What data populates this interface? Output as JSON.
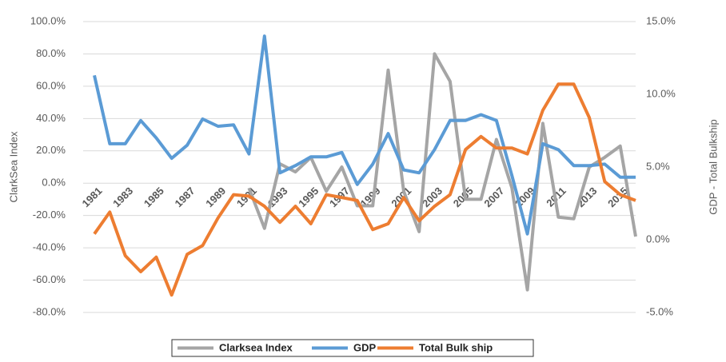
{
  "chart_data": {
    "type": "line",
    "categories": [
      "1981",
      null,
      "1983",
      null,
      "1985",
      null,
      "1987",
      null,
      "1989",
      null,
      "1991",
      null,
      "1993",
      null,
      "1995",
      null,
      "1997",
      null,
      "1999",
      null,
      "2001",
      null,
      "2003",
      null,
      "2005",
      null,
      "2007",
      null,
      "2009",
      null,
      "2011",
      null,
      "2013",
      null,
      "2015",
      null
    ],
    "y_label": "ClarkSea Index",
    "y2_label": "GDP - Total Bulkship",
    "ylim": [
      -80,
      100
    ],
    "yticks": [
      {
        "value": 100,
        "label": "100.0%"
      },
      {
        "value": 80,
        "label": "80.0%"
      },
      {
        "value": 60,
        "label": "60.0%"
      },
      {
        "value": 40,
        "label": "40.0%"
      },
      {
        "value": 20,
        "label": "20.0%"
      },
      {
        "value": 0,
        "label": "0.0%"
      },
      {
        "value": -20,
        "label": "-20.0%"
      },
      {
        "value": -40,
        "label": "-40.0%"
      },
      {
        "value": -60,
        "label": "-60.0%"
      },
      {
        "value": -80,
        "label": "-80.0%"
      }
    ],
    "y2lim": [
      -5,
      15
    ],
    "y2ticks": [
      {
        "value": 15,
        "label": "15.0%"
      },
      {
        "value": 10,
        "label": "10.0%"
      },
      {
        "value": 5,
        "label": "5.0%"
      },
      {
        "value": 0,
        "label": "0.0%"
      },
      {
        "value": -5,
        "label": "-5.0%"
      }
    ],
    "grid": true,
    "legend": "bottom",
    "series": [
      {
        "name": "Clarksea Index",
        "color": "#a5a5a5",
        "axis": "y",
        "values": [
          null,
          null,
          null,
          null,
          null,
          null,
          null,
          null,
          null,
          null,
          -3,
          -28,
          12,
          7,
          16,
          -5,
          10,
          -14,
          -14,
          70,
          -5,
          -30,
          80,
          63,
          -10,
          -10,
          27,
          -3,
          -66,
          37,
          -21,
          -22,
          10,
          16,
          23,
          -33
        ]
      },
      {
        "name": "GDP",
        "color": "#5b9bd5",
        "axis": "y2",
        "values": [
          11.3,
          6.6,
          6.6,
          8.2,
          7.0,
          5.6,
          6.5,
          8.3,
          7.8,
          7.9,
          5.9,
          14.0,
          4.6,
          5.1,
          5.7,
          5.7,
          6.0,
          3.8,
          5.2,
          7.3,
          4.8,
          4.6,
          6.2,
          8.2,
          8.2,
          8.6,
          8.2,
          4.4,
          0.4,
          6.6,
          6.2,
          5.1,
          5.1,
          5.2,
          4.3,
          4.3
        ]
      },
      {
        "name": "Total Bulk ship",
        "color": "#ed7d31",
        "axis": "y2",
        "values": [
          0.4,
          1.9,
          -1.1,
          -2.2,
          -1.2,
          -3.8,
          -1.0,
          -0.4,
          1.5,
          3.1,
          3.0,
          2.3,
          1.2,
          2.3,
          1.1,
          3.1,
          2.9,
          2.7,
          0.7,
          1.1,
          2.9,
          1.3,
          2.3,
          3.1,
          6.2,
          7.1,
          6.3,
          6.3,
          5.9,
          8.9,
          10.7,
          10.7,
          8.4,
          4.0,
          3.1,
          2.7
        ]
      }
    ]
  }
}
